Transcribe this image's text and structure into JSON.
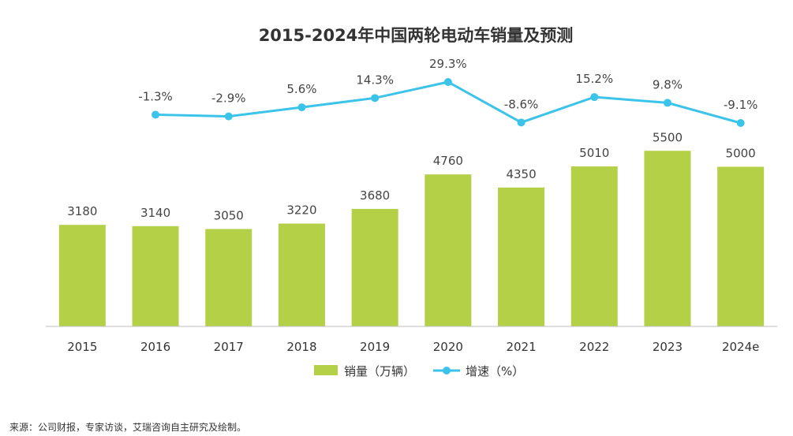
{
  "chart_data": {
    "type": "bar",
    "title": "2015-2024年中国两轮电动车销量及预测",
    "categories": [
      "2015",
      "2016",
      "2017",
      "2018",
      "2019",
      "2020",
      "2021",
      "2022",
      "2023",
      "2024e"
    ],
    "series": [
      {
        "name": "销量（万辆）",
        "type": "bar",
        "color": "#b3d047",
        "values": [
          3180,
          3140,
          3050,
          3220,
          3680,
          4760,
          4350,
          5010,
          5500,
          5000
        ],
        "labels": [
          "3180",
          "3140",
          "3050",
          "3220",
          "3680",
          "4760",
          "4350",
          "5010",
          "5500",
          "5000"
        ]
      },
      {
        "name": "增速（%）",
        "type": "line",
        "color": "#3cc3ea",
        "values": [
          null,
          -1.3,
          -2.9,
          5.6,
          14.3,
          29.3,
          -8.6,
          15.2,
          9.8,
          -9.1
        ],
        "labels": [
          "",
          "-1.3%",
          "-2.9%",
          "5.6%",
          "14.3%",
          "29.3%",
          "-8.6%",
          "15.2%",
          "9.8%",
          "-9.1%"
        ]
      }
    ],
    "grid": false,
    "legend_position": "bottom-center"
  },
  "legend": {
    "bar_label": "销量（万辆）",
    "line_label": "增速（%）"
  },
  "source": "来源：公司财报，专家访谈，艾瑞咨询自主研究及绘制。"
}
